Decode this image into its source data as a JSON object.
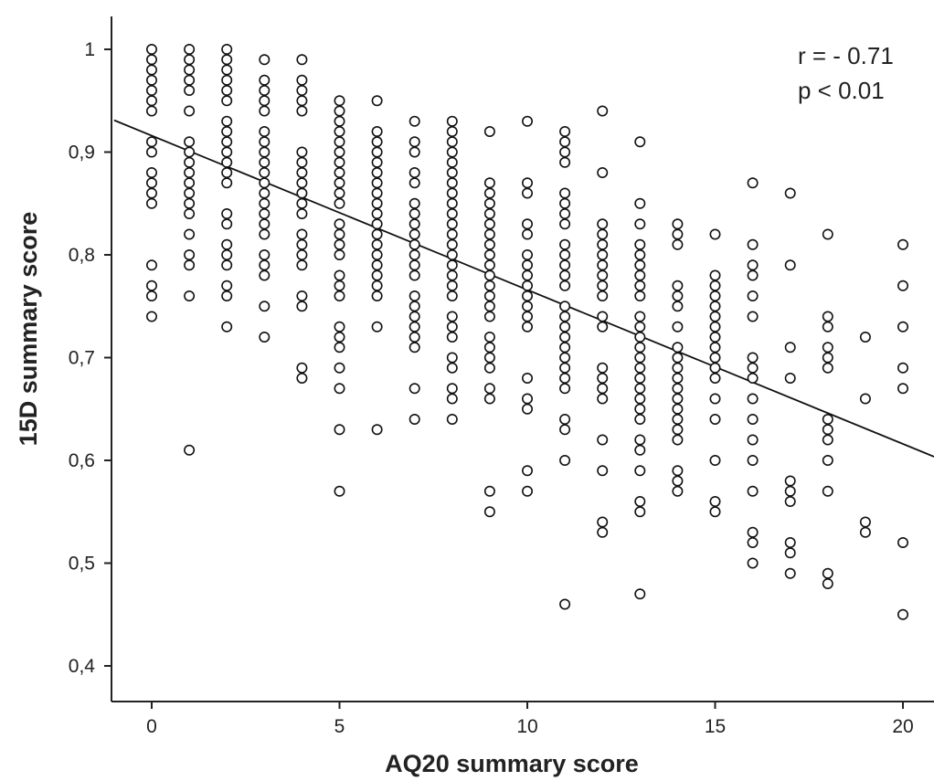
{
  "chart_data": {
    "type": "scatter",
    "xlabel": "AQ20 summary score",
    "ylabel": "15D summary score",
    "xlim": [
      -1,
      21
    ],
    "ylim": [
      0.38,
      1.05
    ],
    "x_ticks": [
      0,
      5,
      10,
      15,
      20
    ],
    "x_tick_labels": [
      "0",
      "5",
      "10",
      "15",
      "20"
    ],
    "y_ticks": [
      0.4,
      0.5,
      0.6,
      0.7,
      0.8,
      0.9,
      1.0
    ],
    "y_tick_labels": [
      "0,4",
      "0,5",
      "0,6",
      "0,7",
      "0,8",
      "0,9",
      "1"
    ],
    "annotations": [
      "r = - 0.71",
      "p < 0.01"
    ],
    "regression_line": {
      "x": [
        -1,
        21
      ],
      "y": [
        0.931,
        0.601
      ]
    },
    "groups": [
      {
        "x": 0,
        "y": [
          1.0,
          0.99,
          0.98,
          0.97,
          0.96,
          0.95,
          0.94,
          0.91,
          0.9,
          0.88,
          0.87,
          0.86,
          0.85,
          0.79,
          0.77,
          0.76,
          0.74
        ]
      },
      {
        "x": 1,
        "y": [
          1.0,
          0.99,
          0.98,
          0.97,
          0.96,
          0.94,
          0.91,
          0.9,
          0.89,
          0.88,
          0.87,
          0.86,
          0.85,
          0.84,
          0.82,
          0.8,
          0.79,
          0.76,
          0.61
        ]
      },
      {
        "x": 2,
        "y": [
          1.0,
          0.99,
          0.98,
          0.97,
          0.96,
          0.95,
          0.93,
          0.92,
          0.91,
          0.9,
          0.89,
          0.88,
          0.87,
          0.84,
          0.83,
          0.81,
          0.8,
          0.79,
          0.77,
          0.76,
          0.73
        ]
      },
      {
        "x": 3,
        "y": [
          0.99,
          0.97,
          0.96,
          0.95,
          0.94,
          0.92,
          0.91,
          0.9,
          0.89,
          0.88,
          0.87,
          0.86,
          0.85,
          0.84,
          0.83,
          0.82,
          0.8,
          0.79,
          0.78,
          0.75,
          0.72
        ]
      },
      {
        "x": 4,
        "y": [
          0.99,
          0.97,
          0.96,
          0.95,
          0.94,
          0.9,
          0.89,
          0.88,
          0.87,
          0.86,
          0.85,
          0.84,
          0.82,
          0.81,
          0.8,
          0.79,
          0.76,
          0.75,
          0.69,
          0.68
        ]
      },
      {
        "x": 5,
        "y": [
          0.95,
          0.94,
          0.93,
          0.92,
          0.91,
          0.9,
          0.89,
          0.88,
          0.87,
          0.86,
          0.85,
          0.83,
          0.82,
          0.81,
          0.8,
          0.78,
          0.77,
          0.76,
          0.73,
          0.72,
          0.71,
          0.69,
          0.67,
          0.63,
          0.57
        ]
      },
      {
        "x": 6,
        "y": [
          0.95,
          0.92,
          0.91,
          0.9,
          0.89,
          0.88,
          0.87,
          0.86,
          0.85,
          0.84,
          0.83,
          0.82,
          0.81,
          0.8,
          0.79,
          0.78,
          0.77,
          0.76,
          0.73,
          0.63
        ]
      },
      {
        "x": 7,
        "y": [
          0.93,
          0.91,
          0.9,
          0.88,
          0.87,
          0.85,
          0.84,
          0.83,
          0.82,
          0.81,
          0.8,
          0.79,
          0.78,
          0.76,
          0.75,
          0.74,
          0.73,
          0.72,
          0.71,
          0.67,
          0.64
        ]
      },
      {
        "x": 8,
        "y": [
          0.93,
          0.92,
          0.91,
          0.9,
          0.89,
          0.88,
          0.87,
          0.86,
          0.85,
          0.84,
          0.83,
          0.82,
          0.81,
          0.8,
          0.79,
          0.78,
          0.77,
          0.76,
          0.74,
          0.73,
          0.72,
          0.7,
          0.69,
          0.67,
          0.66,
          0.64
        ]
      },
      {
        "x": 9,
        "y": [
          0.92,
          0.87,
          0.86,
          0.85,
          0.84,
          0.83,
          0.82,
          0.81,
          0.8,
          0.79,
          0.78,
          0.77,
          0.76,
          0.75,
          0.74,
          0.72,
          0.71,
          0.7,
          0.69,
          0.67,
          0.66,
          0.57,
          0.55
        ]
      },
      {
        "x": 10,
        "y": [
          0.93,
          0.87,
          0.86,
          0.83,
          0.82,
          0.8,
          0.79,
          0.78,
          0.77,
          0.76,
          0.75,
          0.74,
          0.73,
          0.68,
          0.66,
          0.65,
          0.59,
          0.57
        ]
      },
      {
        "x": 11,
        "y": [
          0.92,
          0.91,
          0.9,
          0.89,
          0.86,
          0.85,
          0.84,
          0.83,
          0.81,
          0.8,
          0.79,
          0.78,
          0.77,
          0.75,
          0.74,
          0.73,
          0.72,
          0.71,
          0.7,
          0.69,
          0.68,
          0.67,
          0.64,
          0.63,
          0.6,
          0.46
        ]
      },
      {
        "x": 12,
        "y": [
          0.94,
          0.88,
          0.83,
          0.82,
          0.81,
          0.8,
          0.79,
          0.78,
          0.77,
          0.76,
          0.74,
          0.73,
          0.69,
          0.68,
          0.67,
          0.66,
          0.62,
          0.59,
          0.54,
          0.53
        ]
      },
      {
        "x": 13,
        "y": [
          0.91,
          0.85,
          0.83,
          0.81,
          0.8,
          0.79,
          0.78,
          0.77,
          0.76,
          0.74,
          0.73,
          0.72,
          0.71,
          0.7,
          0.69,
          0.68,
          0.67,
          0.66,
          0.65,
          0.64,
          0.62,
          0.61,
          0.59,
          0.56,
          0.55,
          0.47
        ]
      },
      {
        "x": 14,
        "y": [
          0.83,
          0.82,
          0.81,
          0.77,
          0.76,
          0.75,
          0.73,
          0.71,
          0.7,
          0.69,
          0.68,
          0.67,
          0.66,
          0.65,
          0.64,
          0.63,
          0.62,
          0.59,
          0.58,
          0.57
        ]
      },
      {
        "x": 15,
        "y": [
          0.82,
          0.78,
          0.77,
          0.76,
          0.75,
          0.74,
          0.73,
          0.72,
          0.71,
          0.7,
          0.69,
          0.68,
          0.66,
          0.64,
          0.6,
          0.56,
          0.55
        ]
      },
      {
        "x": 16,
        "y": [
          0.87,
          0.81,
          0.79,
          0.78,
          0.76,
          0.74,
          0.7,
          0.69,
          0.68,
          0.66,
          0.64,
          0.62,
          0.6,
          0.57,
          0.53,
          0.52,
          0.5
        ]
      },
      {
        "x": 17,
        "y": [
          0.86,
          0.79,
          0.71,
          0.68,
          0.58,
          0.57,
          0.56,
          0.52,
          0.51,
          0.49
        ]
      },
      {
        "x": 18,
        "y": [
          0.82,
          0.74,
          0.73,
          0.71,
          0.7,
          0.69,
          0.64,
          0.63,
          0.62,
          0.6,
          0.57,
          0.49,
          0.48
        ]
      },
      {
        "x": 19,
        "y": [
          0.72,
          0.66,
          0.54,
          0.53
        ]
      },
      {
        "x": 20,
        "y": [
          0.81,
          0.77,
          0.73,
          0.69,
          0.67,
          0.52,
          0.45
        ]
      }
    ]
  }
}
